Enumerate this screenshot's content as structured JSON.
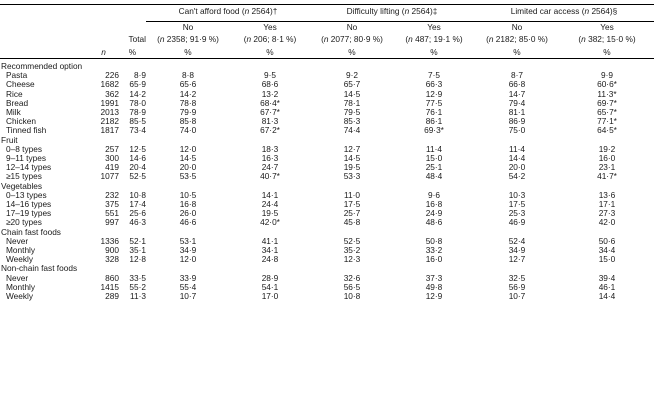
{
  "header": {
    "groups": [
      {
        "name": "Can't afford food",
        "n": "2564",
        "mark": "†"
      },
      {
        "name": "Difficulty lifting",
        "n": "2564",
        "mark": "‡"
      },
      {
        "name": "Limited car access",
        "n": "2564",
        "mark": "§"
      }
    ],
    "total_label": "Total",
    "sub": [
      {
        "label": "No",
        "detail_n": "2358",
        "detail_pct": "91·9 %"
      },
      {
        "label": "Yes",
        "detail_n": "206",
        "detail_pct": "8·1 %"
      },
      {
        "label": "No",
        "detail_n": "2077",
        "detail_pct": "80·9 %"
      },
      {
        "label": "Yes",
        "detail_n": "487",
        "detail_pct": "19·1 %"
      },
      {
        "label": "No",
        "detail_n": "2182",
        "detail_pct": "85·0 %"
      },
      {
        "label": "Yes",
        "detail_n": "382",
        "detail_pct": "15·0 %"
      }
    ],
    "units": [
      "n",
      "%",
      "%",
      "%",
      "%",
      "%",
      "%",
      "%"
    ]
  },
  "sections": [
    {
      "title": "Recommended option",
      "rows": [
        [
          "Pasta",
          "226",
          "8·9",
          "8·8",
          "9·5",
          "9·2",
          "7·5",
          "8·7",
          "9·9"
        ],
        [
          "Cheese",
          "1682",
          "65·9",
          "65·6",
          "68·6",
          "65·7",
          "66·3",
          "66·8",
          "60·6*"
        ],
        [
          "Rice",
          "362",
          "14·2",
          "14·2",
          "13·2",
          "14·5",
          "12·9",
          "14·7",
          "11·3*"
        ],
        [
          "Bread",
          "1991",
          "78·0",
          "78·8",
          "68·4*",
          "78·1",
          "77·5",
          "79·4",
          "69·7*"
        ],
        [
          "Milk",
          "2013",
          "78·9",
          "79·9",
          "67·7*",
          "79·5",
          "76·1",
          "81·1",
          "65·7*"
        ],
        [
          "Chicken",
          "2182",
          "85·5",
          "85·8",
          "81·3",
          "85·3",
          "86·1",
          "86·9",
          "77·1*"
        ],
        [
          "Tinned fish",
          "1817",
          "73·4",
          "74·0",
          "67·2*",
          "74·4",
          "69·3*",
          "75·0",
          "64·5*"
        ]
      ]
    },
    {
      "title": "Fruit",
      "rows": [
        [
          "0–8 types",
          "257",
          "12·5",
          "12·0",
          "18·3",
          "12·7",
          "11·4",
          "11·4",
          "19·2"
        ],
        [
          "9–11 types",
          "300",
          "14·6",
          "14·5",
          "16·3",
          "14·5",
          "15·0",
          "14·4",
          "16·0"
        ],
        [
          "12–14 types",
          "419",
          "20·4",
          "20·0",
          "24·7",
          "19·5",
          "25·1",
          "20·0",
          "23·1"
        ],
        [
          "≥15 types",
          "1077",
          "52·5",
          "53·5",
          "40·7*",
          "53·3",
          "48·4",
          "54·2",
          "41·7*"
        ]
      ]
    },
    {
      "title": "Vegetables",
      "rows": [
        [
          "0–13 types",
          "232",
          "10·8",
          "10·5",
          "14·1",
          "11·0",
          "9·6",
          "10·3",
          "13·6"
        ],
        [
          "14–16 types",
          "375",
          "17·4",
          "16·8",
          "24·4",
          "17·5",
          "16·8",
          "17·5",
          "17·1"
        ],
        [
          "17–19 types",
          "551",
          "25·6",
          "26·0",
          "19·5",
          "25·7",
          "24·9",
          "25·3",
          "27·3"
        ],
        [
          "≥20 types",
          "997",
          "46·3",
          "46·6",
          "42·0*",
          "45·8",
          "48·6",
          "46·9",
          "42·0"
        ]
      ]
    },
    {
      "title": "Chain fast foods",
      "rows": [
        [
          "Never",
          "1336",
          "52·1",
          "53·1",
          "41·1",
          "52·5",
          "50·8",
          "52·4",
          "50·6"
        ],
        [
          "Monthly",
          "900",
          "35·1",
          "34·9",
          "34·1",
          "35·2",
          "33·2",
          "34·9",
          "34·4"
        ],
        [
          "Weekly",
          "328",
          "12·8",
          "12·0",
          "24·8",
          "12·3",
          "16·0",
          "12·7",
          "15·0"
        ]
      ]
    },
    {
      "title": "Non-chain fast foods",
      "rows": [
        [
          "Never",
          "860",
          "33·5",
          "33·9",
          "28·9",
          "32·6",
          "37·3",
          "32·5",
          "39·4"
        ],
        [
          "Monthly",
          "1415",
          "55·2",
          "55·4",
          "54·1",
          "56·5",
          "49·8",
          "56·9",
          "46·1"
        ],
        [
          "Weekly",
          "289",
          "11·3",
          "10·7",
          "17·0",
          "10·8",
          "12·9",
          "10·7",
          "14·4"
        ]
      ]
    }
  ]
}
